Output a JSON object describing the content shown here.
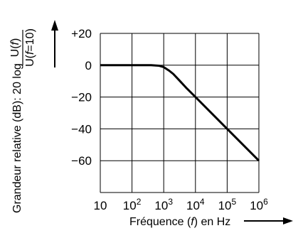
{
  "chart_data": {
    "type": "line",
    "x_scale": "log",
    "xlim": [
      10,
      1000000
    ],
    "ylim": [
      -80,
      20
    ],
    "grid": true,
    "x_ticks": [
      {
        "base": "10",
        "exp": ""
      },
      {
        "base": "10",
        "exp": "2"
      },
      {
        "base": "10",
        "exp": "3"
      },
      {
        "base": "10",
        "exp": "4"
      },
      {
        "base": "10",
        "exp": "5"
      },
      {
        "base": "10",
        "exp": "6"
      }
    ],
    "x_tick_values": [
      10,
      100,
      1000,
      10000,
      100000,
      1000000
    ],
    "y_ticks": [
      {
        "label": "+20",
        "value": 20
      },
      {
        "label": "0",
        "value": 0
      },
      {
        "label": "−20",
        "value": -20
      },
      {
        "label": "−40",
        "value": -40
      },
      {
        "label": "−60",
        "value": -60
      }
    ],
    "xlabel": {
      "pre": "Fréquence (",
      "var": "f",
      "post": ") en Hz"
    },
    "ylabel": {
      "text": "Grandeur relative (dB): 20 log",
      "frac_num": {
        "pre": "U(",
        "var": "f",
        "post": ")"
      },
      "frac_den": {
        "pre": "U(",
        "var": "f",
        "post": "=10)"
      }
    },
    "series": [
      {
        "x": [
          10,
          100,
          400,
          700,
          1000,
          1500,
          2000,
          3000,
          5000,
          10000,
          100000,
          1000000
        ],
        "y": [
          0,
          0,
          0,
          -0.3,
          -1.2,
          -3.5,
          -5.5,
          -9.2,
          -14,
          -20,
          -40,
          -60
        ]
      }
    ]
  }
}
